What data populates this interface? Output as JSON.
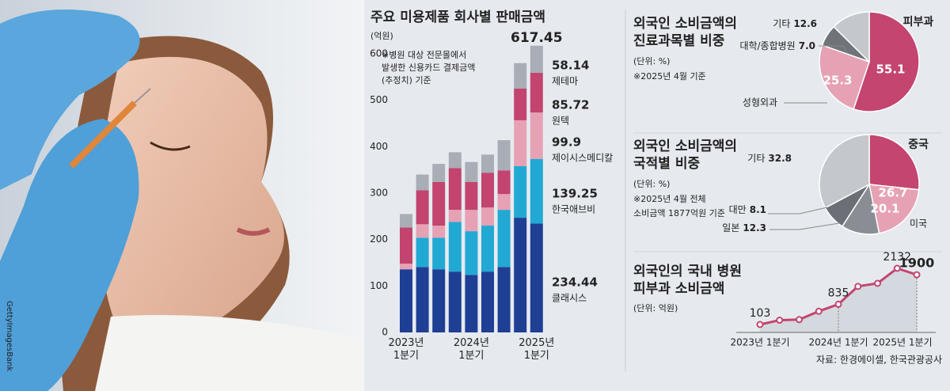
{
  "photo_credit": "GettyImagesBank",
  "source": "자료: 한경에이셀, 한국관광공사",
  "chart_data": [
    {
      "type": "bar",
      "stacked": true,
      "title": "주요 미용제품 회사별 판매금액",
      "y_label": "(억원)",
      "note": [
        "※병원 대상 전문몰에서",
        "발생한 신용카드 결제금액",
        "(추정치) 기준"
      ],
      "total_label": "617.45",
      "categories": [
        "2023년 1분기",
        null,
        null,
        null,
        "2024년 1분기",
        null,
        null,
        null,
        "2025년 1분기"
      ],
      "ylim": [
        0,
        600
      ],
      "yticks": [
        0,
        100,
        200,
        300,
        400,
        500,
        600
      ],
      "grid": false,
      "series": [
        {
          "name": "클래시스",
          "color": "#1f3f95",
          "values": [
            136,
            141,
            136,
            131,
            124,
            131,
            141,
            247,
            234.44
          ]
        },
        {
          "name": "한국애브비",
          "color": "#21a9d3",
          "values": [
            0,
            63,
            68,
            107,
            94,
            99,
            123,
            111,
            139.25
          ]
        },
        {
          "name": "제이시스메디칼",
          "color": "#e6a1b4",
          "values": [
            12,
            29,
            26,
            26,
            46,
            39,
            34,
            99,
            99.9
          ]
        },
        {
          "name": "원텍",
          "color": "#c2446f",
          "values": [
            78,
            73,
            94,
            90,
            60,
            75,
            51,
            68,
            85.72
          ]
        },
        {
          "name": "제테마",
          "color": "#a8adb6",
          "values": [
            29,
            34,
            39,
            34,
            43,
            39,
            65,
            55,
            58.14
          ]
        }
      ]
    },
    {
      "type": "pie",
      "title": [
        "외국인 소비금액의",
        "진료과목별 비중"
      ],
      "unit": "(단위: %)",
      "note": [
        "※2025년 4월 기준"
      ],
      "categories": [
        "피부과",
        "성형외과",
        "대학/종합병원",
        "기타"
      ],
      "values": [
        55.1,
        25.3,
        7,
        12.6
      ],
      "value_labels": [
        "55.1",
        "25.3",
        "7.0",
        "12.6"
      ],
      "colors": [
        "#c4456f",
        "#e6a2b4",
        "#70747a",
        "#c4c8cd"
      ]
    },
    {
      "type": "pie",
      "title": [
        "외국인 소비금액의",
        "국적별 비중"
      ],
      "unit": "(단위: %)",
      "note": [
        "※2025년 4월 전체",
        "소비금액 1877억원 기준"
      ],
      "categories": [
        "중국",
        "미국",
        "일본",
        "대만",
        "기타"
      ],
      "values": [
        26.7,
        20.1,
        12.3,
        8.1,
        32.8
      ],
      "colors": [
        "#c4456f",
        "#e6a2b4",
        "#8a8e94",
        "#6c7076",
        "#c4c8cd"
      ]
    },
    {
      "type": "line",
      "title": [
        "외국인의 국내 병원",
        "피부과 소비금액"
      ],
      "unit": "(단위: 억원)",
      "categories": [
        "2023년 1분기",
        null,
        null,
        null,
        "2024년 1분기",
        null,
        null,
        null,
        "2025년 1분기"
      ],
      "values": [
        103,
        260,
        280,
        580,
        835,
        1480,
        1590,
        2132,
        1900
      ],
      "value_labels": [
        "103",
        null,
        null,
        null,
        "835",
        null,
        null,
        "2132",
        "1900"
      ],
      "color": "#c4456f"
    }
  ]
}
